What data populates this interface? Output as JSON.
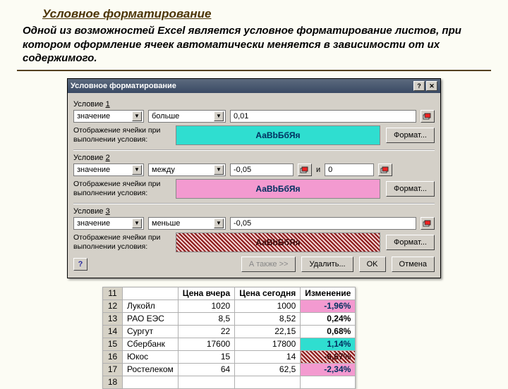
{
  "page": {
    "title": "Условное форматирование",
    "subtitle": "Одной из возможностей Excel является условное форматирование листов, при котором оформление ячеек автоматически меняется в зависимости от их содержимого."
  },
  "dialog": {
    "title": "Условное форматирование",
    "help_icon": "?",
    "close_icon": "✕",
    "preview_label": "Отображение ячейки при выполнении условия:",
    "preview_text": "АаВbБбЯя",
    "format_btn": "Формат...",
    "footer": {
      "help": "?",
      "also": "А также >>",
      "delete": "Удалить...",
      "ok": "OK",
      "cancel": "Отмена"
    },
    "conditions": [
      {
        "label_prefix": "Условие ",
        "label_num": "1",
        "type": "значение",
        "op": "больше",
        "v1": "0,01",
        "between": false,
        "preview_bg": "#2fded0",
        "preview_color": "#003060",
        "preview_pattern": "none"
      },
      {
        "label_prefix": "Условие ",
        "label_num": "2",
        "type": "значение",
        "op": "между",
        "v1": "-0,05",
        "mid": "и",
        "v2": "0",
        "between": true,
        "preview_bg": "#f39ad0",
        "preview_color": "#003060",
        "preview_pattern": "none"
      },
      {
        "label_prefix": "Условие ",
        "label_num": "3",
        "type": "значение",
        "op": "меньше",
        "v1": "-0,05",
        "between": false,
        "preview_bg": "#ffffff",
        "preview_color": "#3a0a0a",
        "preview_pattern": "hatch"
      }
    ]
  },
  "sheet": {
    "row_start": 11,
    "rows_extra": [
      18
    ],
    "headers": [
      "",
      "Цена вчера",
      "Цена сегодня",
      "Изменение"
    ],
    "rows": [
      {
        "n": "Лукойл",
        "a": "1020",
        "b": "1000",
        "chg": "-1,96%",
        "bg": "#f39ad0",
        "fg": "#003060"
      },
      {
        "n": "РАО ЕЭС",
        "a": "8,5",
        "b": "8,52",
        "chg": "0,24%",
        "bg": "#ffffff",
        "fg": "#000000"
      },
      {
        "n": "Сургут",
        "a": "22",
        "b": "22,15",
        "chg": "0,68%",
        "bg": "#ffffff",
        "fg": "#000000"
      },
      {
        "n": "Сбербанк",
        "a": "17600",
        "b": "17800",
        "chg": "1,14%",
        "bg": "#2fded0",
        "fg": "#003060"
      },
      {
        "n": "Юкос",
        "a": "15",
        "b": "14",
        "chg": "-6,67%",
        "bg": "hatch",
        "fg": "#3a0a0a"
      },
      {
        "n": "Ростелеком",
        "a": "64",
        "b": "62,5",
        "chg": "-2,34%",
        "bg": "#f39ad0",
        "fg": "#003060"
      }
    ],
    "colors": {
      "hatch_fg": "#8b1a1a",
      "hatch_bg": "#f2d0d0"
    }
  }
}
